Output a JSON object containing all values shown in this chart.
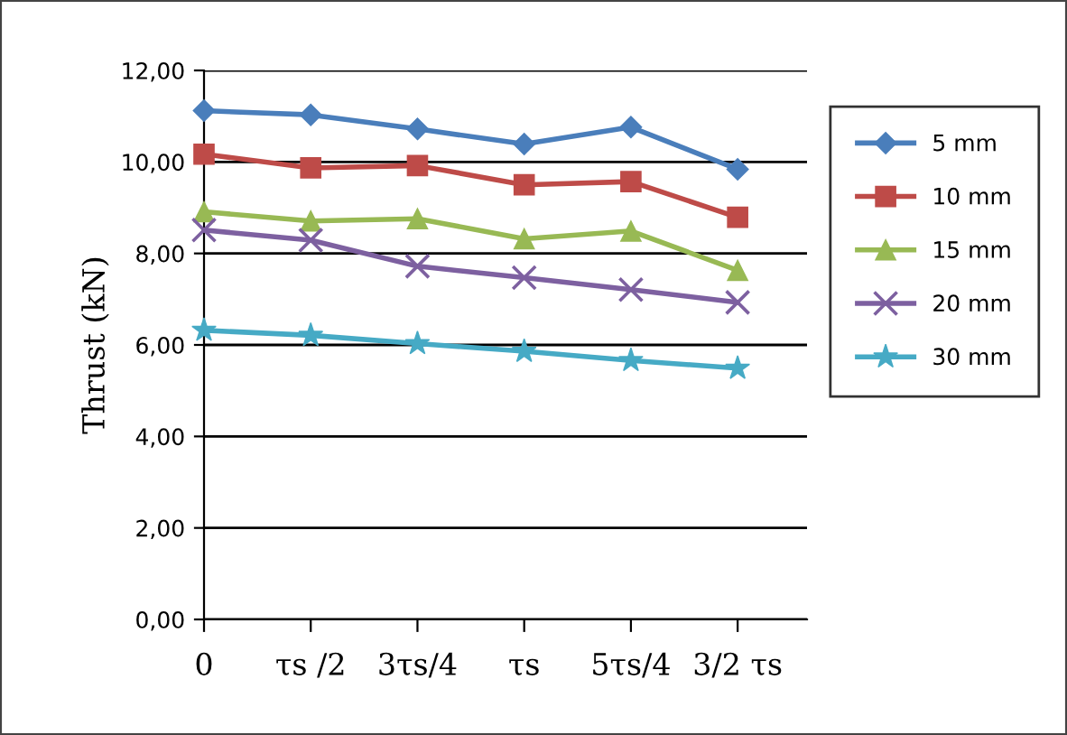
{
  "chart_data": {
    "type": "line",
    "ylabel": "Thrust (kN)",
    "categories": [
      "0",
      "τs /2",
      "3τs/4",
      "τs",
      "5τs/4",
      "3/2 τs"
    ],
    "series": [
      {
        "name": "5 mm",
        "color": "#4a7ebb",
        "marker": "diamond",
        "values": [
          11.12,
          11.03,
          10.72,
          10.39,
          10.76,
          9.84
        ]
      },
      {
        "name": "10 mm",
        "color": "#be4b48",
        "marker": "square",
        "values": [
          10.17,
          9.87,
          9.92,
          9.5,
          9.57,
          8.79
        ]
      },
      {
        "name": "15 mm",
        "color": "#98b954",
        "marker": "triangle",
        "values": [
          8.91,
          8.71,
          8.76,
          8.32,
          8.49,
          7.63
        ]
      },
      {
        "name": "20 mm",
        "color": "#7d60a0",
        "marker": "cross",
        "values": [
          8.51,
          8.29,
          7.72,
          7.47,
          7.21,
          6.93
        ]
      },
      {
        "name": "30 mm",
        "color": "#46aac5",
        "marker": "star",
        "values": [
          6.32,
          6.21,
          6.03,
          5.86,
          5.66,
          5.49
        ]
      }
    ],
    "ylim": [
      0,
      12
    ],
    "yticks": [
      {
        "value": 0,
        "label": "0,00"
      },
      {
        "value": 2,
        "label": "2,00"
      },
      {
        "value": 4,
        "label": "4,00"
      },
      {
        "value": 6,
        "label": "6,00"
      },
      {
        "value": 8,
        "label": "8,00"
      },
      {
        "value": 10,
        "label": "10,00"
      },
      {
        "value": 12,
        "label": "12,00"
      }
    ],
    "grid": "y",
    "legend": "right",
    "line_style": "solid"
  }
}
